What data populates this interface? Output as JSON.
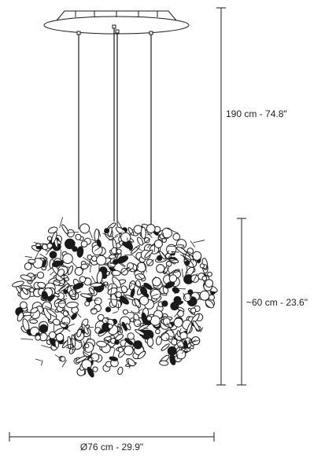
{
  "dimensions": {
    "total_height": "190 cm - 74.8\"",
    "body_height": "~60 cm - 23.6\"",
    "diameter": "Ø76 cm - 29.9\""
  },
  "colors": {
    "line": "#1a1a1a",
    "background": "#ffffff"
  }
}
